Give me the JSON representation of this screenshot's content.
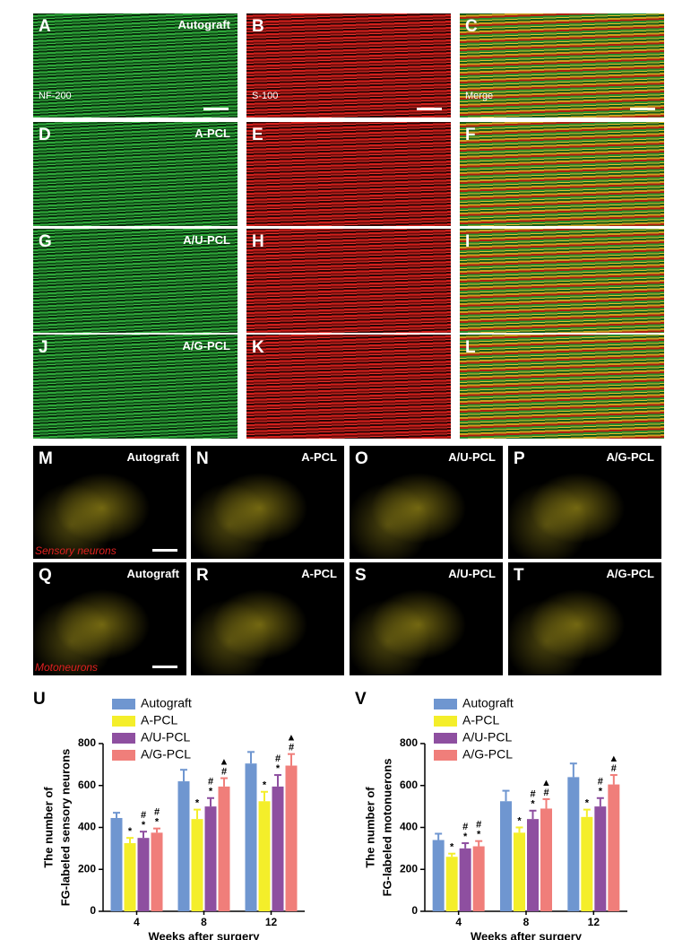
{
  "panels": [
    {
      "letter": "A",
      "label": "Autograft",
      "stain": "NF-200"
    },
    {
      "letter": "B",
      "stain": "S-100"
    },
    {
      "letter": "C",
      "stain": "Merge"
    },
    {
      "letter": "D",
      "label": "A-PCL"
    },
    {
      "letter": "E"
    },
    {
      "letter": "F"
    },
    {
      "letter": "G",
      "label": "A/U-PCL"
    },
    {
      "letter": "H"
    },
    {
      "letter": "I"
    },
    {
      "letter": "J",
      "label": "A/G-PCL"
    },
    {
      "letter": "K"
    },
    {
      "letter": "L"
    },
    {
      "letter": "M",
      "label": "Autograft",
      "caption": "Sensory neurons"
    },
    {
      "letter": "N",
      "label": "A-PCL"
    },
    {
      "letter": "O",
      "label": "A/U-PCL"
    },
    {
      "letter": "P",
      "label": "A/G-PCL"
    },
    {
      "letter": "Q",
      "label": "Autograft",
      "caption": "Motoneurons"
    },
    {
      "letter": "R",
      "label": "A-PCL"
    },
    {
      "letter": "S",
      "label": "A/U-PCL"
    },
    {
      "letter": "T",
      "label": "A/G-PCL"
    }
  ],
  "chart_data": [
    {
      "type": "bar",
      "panel": "U",
      "ylabel": [
        "The number of",
        "FG-labeled sensory neurons"
      ],
      "xlabel": "Weeks after surgery",
      "categories": [
        "4",
        "8",
        "12"
      ],
      "ylim": [
        0,
        800
      ],
      "yticks": [
        0,
        200,
        400,
        600,
        800
      ],
      "series": [
        {
          "name": "Autograft",
          "color": "#6f96d0",
          "values": [
            445,
            620,
            705
          ],
          "errors": [
            25,
            55,
            55
          ]
        },
        {
          "name": "A-PCL",
          "color": "#f4ee2a",
          "values": [
            325,
            440,
            525
          ],
          "errors": [
            25,
            45,
            45
          ],
          "significance": [
            [
              "*"
            ],
            [
              "*"
            ],
            [
              "*"
            ]
          ]
        },
        {
          "name": "A/U-PCL",
          "color": "#8e4fa0",
          "values": [
            350,
            500,
            595
          ],
          "errors": [
            30,
            40,
            55
          ],
          "significance": [
            [
              "#",
              "*"
            ],
            [
              "#",
              "*"
            ],
            [
              "#",
              "*"
            ]
          ]
        },
        {
          "name": "A/G-PCL",
          "color": "#f07e7a",
          "values": [
            375,
            595,
            695
          ],
          "errors": [
            20,
            40,
            55
          ],
          "significance": [
            [
              "#",
              "*"
            ],
            [
              "▲",
              "#"
            ],
            [
              "▲",
              "#"
            ]
          ]
        }
      ]
    },
    {
      "type": "bar",
      "panel": "V",
      "ylabel": [
        "The number of",
        "FG-labeled motonuerons"
      ],
      "xlabel": "Weeks after surgery",
      "categories": [
        "4",
        "8",
        "12"
      ],
      "ylim": [
        0,
        800
      ],
      "yticks": [
        0,
        200,
        400,
        600,
        800
      ],
      "series": [
        {
          "name": "Autograft",
          "color": "#6f96d0",
          "values": [
            340,
            525,
            640
          ],
          "errors": [
            30,
            50,
            65
          ]
        },
        {
          "name": "A-PCL",
          "color": "#f4ee2a",
          "values": [
            260,
            375,
            450
          ],
          "errors": [
            15,
            25,
            35
          ],
          "significance": [
            [
              "*"
            ],
            [
              "*"
            ],
            [
              "*"
            ]
          ]
        },
        {
          "name": "A/U-PCL",
          "color": "#8e4fa0",
          "values": [
            300,
            440,
            500
          ],
          "errors": [
            25,
            40,
            40
          ],
          "significance": [
            [
              "#",
              "*"
            ],
            [
              "#",
              "*"
            ],
            [
              "#",
              "*"
            ]
          ]
        },
        {
          "name": "A/G-PCL",
          "color": "#f07e7a",
          "values": [
            310,
            490,
            605
          ],
          "errors": [
            25,
            45,
            45
          ],
          "significance": [
            [
              "#",
              "*"
            ],
            [
              "▲",
              "#"
            ],
            [
              "▲",
              "#"
            ]
          ]
        }
      ]
    }
  ]
}
